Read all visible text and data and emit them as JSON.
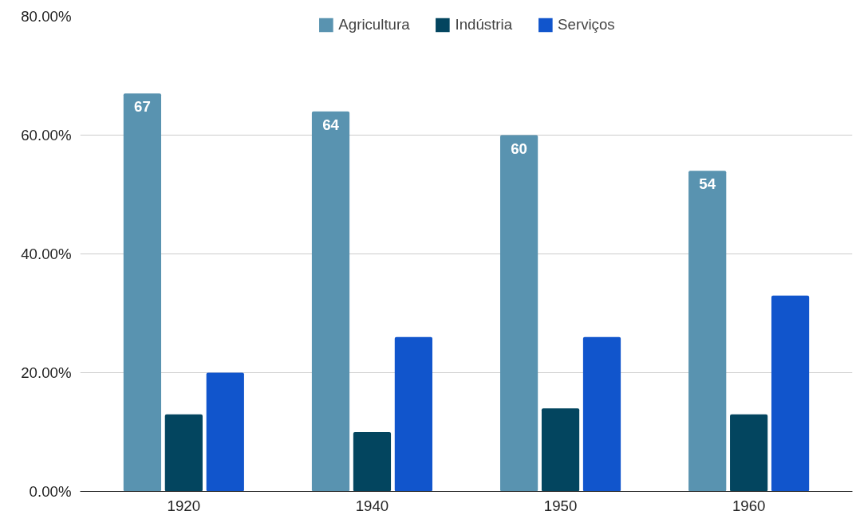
{
  "chart_data": {
    "type": "bar",
    "categories": [
      "1920",
      "1940",
      "1950",
      "1960"
    ],
    "series": [
      {
        "name": "Agricultura",
        "color": "#5993b0",
        "values": [
          67,
          64,
          60,
          54
        ],
        "value_labels": [
          "67",
          "64",
          "60",
          "54"
        ]
      },
      {
        "name": "Indústria",
        "color": "#03455f",
        "values": [
          13,
          10,
          14,
          13
        ]
      },
      {
        "name": "Serviços",
        "color": "#1155cc",
        "values": [
          20,
          26,
          26,
          33
        ]
      }
    ],
    "ylim": [
      0,
      80
    ],
    "yticks": [
      {
        "value": 0,
        "label": "0.00%"
      },
      {
        "value": 20,
        "label": "20.00%"
      },
      {
        "value": 40,
        "label": "40.00%"
      },
      {
        "value": 60,
        "label": "60.00%"
      },
      {
        "value": 80,
        "label": "80.00%"
      }
    ],
    "grid": "y",
    "legend": "top"
  }
}
